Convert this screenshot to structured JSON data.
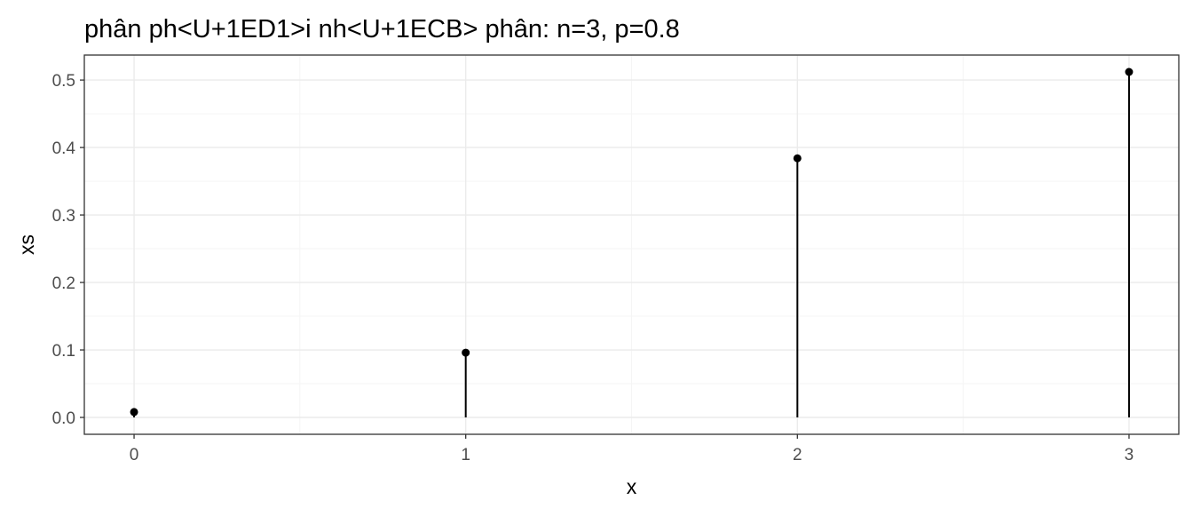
{
  "chart_data": {
    "type": "scatter",
    "style": "lollipop",
    "title": "phân ph<U+1ED1>i nh<U+1ECB> phân: n=3, p=0.8",
    "xlabel": "x",
    "ylabel": "xs",
    "x": [
      0,
      1,
      2,
      3
    ],
    "values": [
      0.008,
      0.096,
      0.384,
      0.512
    ],
    "xlim": [
      -0.15,
      3.15
    ],
    "ylim": [
      -0.025,
      0.537
    ],
    "x_ticks": [
      0,
      1,
      2,
      3
    ],
    "x_tick_labels": [
      "0",
      "1",
      "2",
      "3"
    ],
    "x_minor_ticks": [
      0.5,
      1.5,
      2.5
    ],
    "y_ticks": [
      0.0,
      0.1,
      0.2,
      0.3,
      0.4,
      0.5
    ],
    "y_tick_labels": [
      "0.0",
      "0.1",
      "0.2",
      "0.3",
      "0.4",
      "0.5"
    ],
    "y_minor_ticks": [
      0.05,
      0.15,
      0.25,
      0.35,
      0.45
    ],
    "grid": true,
    "legend": "none",
    "colors": {
      "mark": "#000000",
      "grid_major": "#ebebeb",
      "grid_minor": "#f5f5f5",
      "panel_border": "#333333",
      "tick_text": "#4d4d4d"
    }
  }
}
